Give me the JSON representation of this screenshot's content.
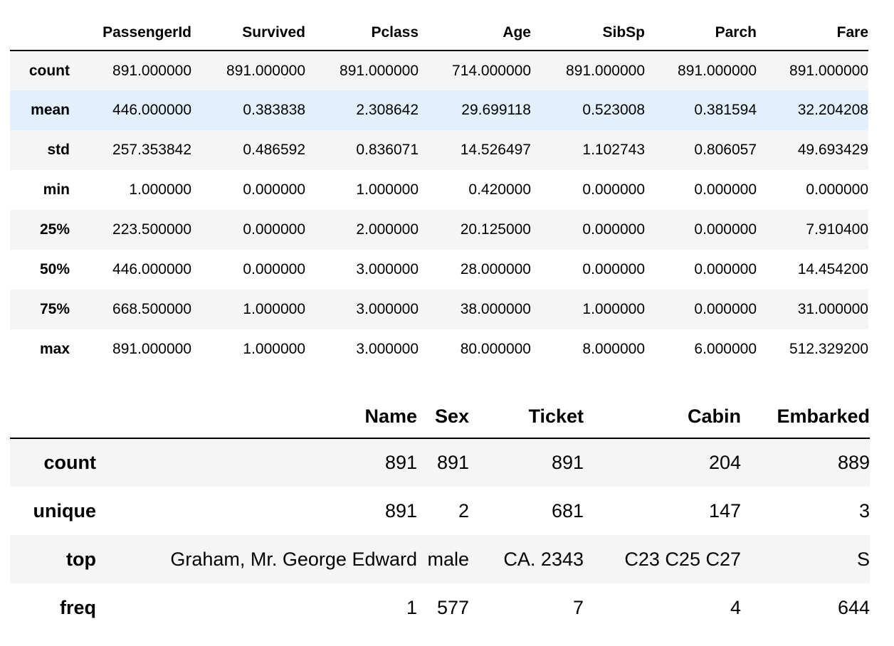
{
  "numeric_table": {
    "columns": [
      "",
      "PassengerId",
      "Survived",
      "Pclass",
      "Age",
      "SibSp",
      "Parch",
      "Fare"
    ],
    "rows": [
      {
        "label": "count",
        "values": [
          "891.000000",
          "891.000000",
          "891.000000",
          "714.000000",
          "891.000000",
          "891.000000",
          "891.000000"
        ]
      },
      {
        "label": "mean",
        "values": [
          "446.000000",
          "0.383838",
          "2.308642",
          "29.699118",
          "0.523008",
          "0.381594",
          "32.204208"
        ]
      },
      {
        "label": "std",
        "values": [
          "257.353842",
          "0.486592",
          "0.836071",
          "14.526497",
          "1.102743",
          "0.806057",
          "49.693429"
        ]
      },
      {
        "label": "min",
        "values": [
          "1.000000",
          "0.000000",
          "1.000000",
          "0.420000",
          "0.000000",
          "0.000000",
          "0.000000"
        ]
      },
      {
        "label": "25%",
        "values": [
          "223.500000",
          "0.000000",
          "2.000000",
          "20.125000",
          "0.000000",
          "0.000000",
          "7.910400"
        ]
      },
      {
        "label": "50%",
        "values": [
          "446.000000",
          "0.000000",
          "3.000000",
          "28.000000",
          "0.000000",
          "0.000000",
          "14.454200"
        ]
      },
      {
        "label": "75%",
        "values": [
          "668.500000",
          "1.000000",
          "3.000000",
          "38.000000",
          "1.000000",
          "0.000000",
          "31.000000"
        ]
      },
      {
        "label": "max",
        "values": [
          "891.000000",
          "1.000000",
          "3.000000",
          "80.000000",
          "8.000000",
          "6.000000",
          "512.329200"
        ]
      }
    ],
    "highlight_color": "#e1f0fc",
    "stripe_color": "#f5f5f5"
  },
  "object_table": {
    "columns": [
      "",
      "Name",
      "Sex",
      "Ticket",
      "Cabin",
      "Embarked"
    ],
    "rows": [
      {
        "label": "count",
        "values": [
          "891",
          "891",
          "891",
          "204",
          "889"
        ]
      },
      {
        "label": "unique",
        "values": [
          "891",
          "2",
          "681",
          "147",
          "3"
        ]
      },
      {
        "label": "top",
        "values": [
          "Graham, Mr. George Edward",
          "male",
          "CA. 2343",
          "C23 C25 C27",
          "S"
        ]
      },
      {
        "label": "freq",
        "values": [
          "1",
          "577",
          "7",
          "4",
          "644"
        ]
      }
    ]
  }
}
